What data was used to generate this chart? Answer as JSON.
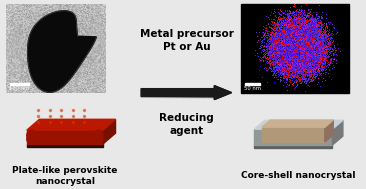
{
  "bg_color": "#e8e8e8",
  "arrow_color": "#111111",
  "text_metal": "Metal precursor\nPt or Au",
  "text_reducing": "Reducing\nagent",
  "text_left_label": "Plate-like perovskite\nnanocrystal",
  "text_right_label": "Core-shell nanocrystal",
  "tem_bg_light": "#c0c0c0",
  "tem_bg_dark": "#888888",
  "edx_bg": "#000000",
  "plate_top_color": "#bb1800",
  "plate_front_color": "#991200",
  "plate_right_color": "#771000",
  "plate_bottom_color": "#221100",
  "shell_top_color": "#c8d0d8",
  "shell_front_color": "#909898",
  "shell_right_color": "#787878",
  "shell_bottom_color": "#606060",
  "core_top_color": "#c8b090",
  "core_front_color": "#b09878",
  "core_right_color": "#907060",
  "label_fontsize": 6.5,
  "arrow_text_fontsize": 7.5
}
